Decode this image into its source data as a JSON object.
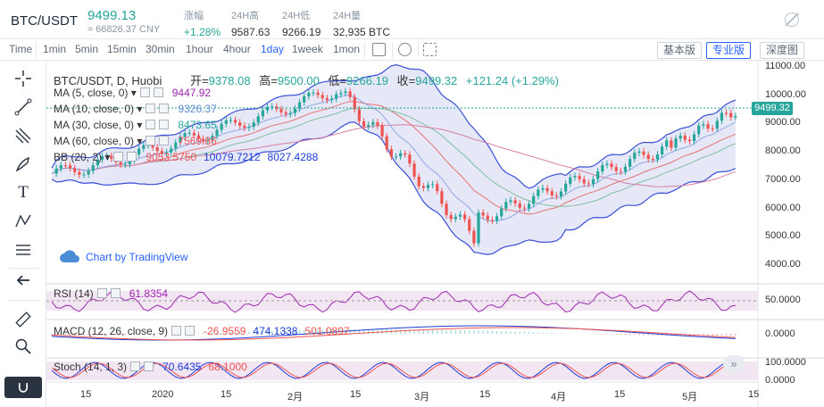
{
  "header": {
    "pair": "BTC/USDT",
    "price": "9499.13",
    "cny": "≈ 66826.37 CNY",
    "stats": [
      {
        "label": "涨幅",
        "value": "+1.28%",
        "up": true
      },
      {
        "label": "24H高",
        "value": "9587.63"
      },
      {
        "label": "24H低",
        "value": "9266.19"
      },
      {
        "label": "24H量",
        "value": "32,935 BTC"
      }
    ]
  },
  "toolbar": {
    "timeframes": [
      "Time",
      "1min",
      "5min",
      "15min",
      "30min",
      "1hour",
      "4hour",
      "1day",
      "1week",
      "1mon"
    ],
    "active": "1day",
    "versions": [
      "基本版",
      "专业版",
      "深度图"
    ],
    "active_version": "专业版"
  },
  "chart": {
    "title": "BTC/USDT, D, Huobi",
    "ohlc": {
      "open_label": "开=",
      "open": "9378.08",
      "high_label": "高=",
      "high": "9500.00",
      "low_label": "低=",
      "low": "9266.19",
      "close_label": "收=",
      "close": "9499.32",
      "change": "+121.24 (+1.29%)"
    },
    "indicators": [
      {
        "name": "MA (5, close, 0)",
        "values": [
          "9447.92"
        ],
        "colors": [
          "#9c27b0"
        ]
      },
      {
        "name": "MA (10, close, 0)",
        "values": [
          "9326.37"
        ],
        "colors": [
          "#5b8bd6"
        ]
      },
      {
        "name": "MA (30, close, 0)",
        "values": [
          "8473.65"
        ],
        "colors": [
          "#26a69a"
        ]
      },
      {
        "name": "MA (60, close, 0)",
        "values": [
          "7569.86"
        ],
        "colors": [
          "#ef5350"
        ]
      },
      {
        "name": "BB (20, 2)",
        "values": [
          "9053.5750",
          "10079.7212",
          "8027.4288"
        ],
        "colors": [
          "#ef5350",
          "#1e3cd6",
          "#1e3cd6"
        ]
      }
    ],
    "watermark": "Chart by TradingView",
    "price_axis": [
      "11000.00",
      "10000.00",
      "9000.00",
      "8000.00",
      "7000.00",
      "6000.00",
      "5000.00",
      "4000.00"
    ],
    "current_price": "9499.32",
    "rsi": {
      "name": "RSI (14)",
      "value": "61.8354",
      "axis": "50.0000"
    },
    "macd": {
      "name": "MACD (12, 26, close, 9)",
      "values": [
        "-26.9559",
        "474.1338",
        "501.0897"
      ],
      "colors": [
        "#ef5350",
        "#1e3cd6",
        "#ef5350"
      ],
      "axis": "0.0000"
    },
    "stoch": {
      "name": "Stoch (14, 1, 3)",
      "values": [
        "70.6435",
        "68.1000"
      ],
      "colors": [
        "#1e3cd6",
        "#ef5350"
      ],
      "axis_top": "100.0000",
      "axis_bottom": "0.0000"
    },
    "dates": [
      "15",
      "2020",
      "15",
      "2月",
      "15",
      "3月",
      "15",
      "4月",
      "15",
      "5月",
      "15"
    ]
  },
  "colors": {
    "up": "#26a69a",
    "down": "#ef5350",
    "accent": "#2962ff",
    "bb_fill": "#e3e5f7"
  }
}
